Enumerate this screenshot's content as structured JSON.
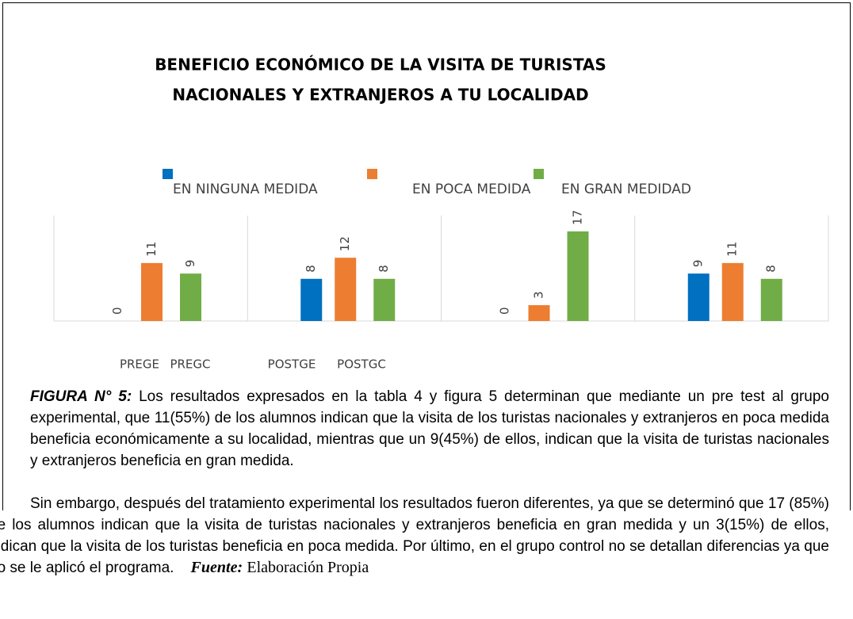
{
  "chart_data": {
    "type": "bar",
    "title": [
      "BENEFICIO ECONÓMICO DE LA VISITA DE TURISTAS",
      "NACIONALES Y EXTRANJEROS A TU LOCALIDAD"
    ],
    "categories": [
      "PREGE",
      "PREGC",
      "POSTGE",
      "POSTGC"
    ],
    "series": [
      {
        "name": "EN NINGUNA MEDIDA",
        "color": "#0070c0",
        "values": [
          0,
          8,
          0,
          9
        ]
      },
      {
        "name": "EN POCA MEDIDA",
        "color": "#ed7d31",
        "values": [
          11,
          12,
          3,
          11
        ]
      },
      {
        "name": "EN GRAN MEDIDAD",
        "color": "#70ad47",
        "values": [
          9,
          8,
          17,
          8
        ]
      }
    ],
    "ylim": [
      0,
      20
    ],
    "legend": "top"
  },
  "caption": {
    "label": "FIGURA N° 5:",
    "p1": "Los resultados expresados en la tabla 4 y figura 5 determinan que mediante un pre test al grupo experimental, que 11(55%) de los alumnos indican que la visita de los turistas nacionales y extranjeros en poca medida beneficia económicamente a su localidad, mientras que un 9(45%) de ellos, indican que la visita de turistas nacionales y extranjeros beneficia en gran medida.",
    "p2": "Sin embargo, después del tratamiento experimental los resultados fueron diferentes, ya que se determinó que 17 (85%) de los alumnos indican que la visita de turistas nacionales y extranjeros beneficia en gran medida y un 3(15%) de ellos, indican que la visita de los turistas beneficia en poca medida. Por último, en el grupo control no se detallan diferencias ya que no se le aplicó el programa.",
    "source_label": "Fuente:",
    "source": "Elaboración Propia"
  }
}
